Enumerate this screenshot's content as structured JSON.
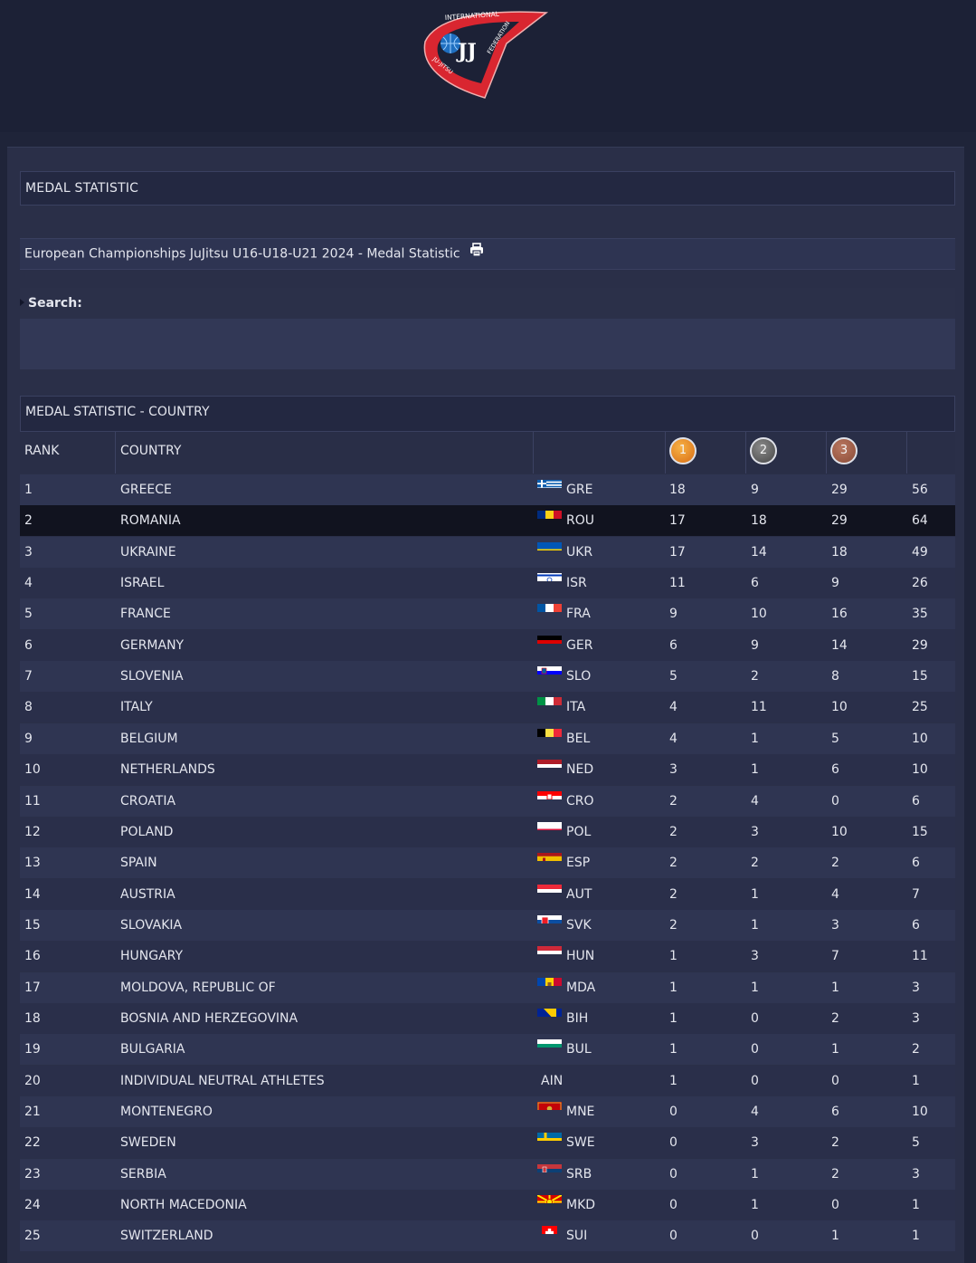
{
  "header": {
    "logo_text_top": "INTERNATIONAL",
    "logo_text_right": "FEDERATION",
    "logo_text_left": "JU-JITSU",
    "logo_mark": "JJ"
  },
  "section_title": "MEDAL STATISTIC",
  "event_title": "European Championships JuJitsu U16-U18-U21 2024 - Medal Statistic",
  "print_icon": "printer-icon",
  "search": {
    "label": "Search:"
  },
  "table": {
    "title": "MEDAL STATISTIC - COUNTRY",
    "columns": {
      "rank": "RANK",
      "country": "COUNTRY",
      "gold": "1",
      "silver": "2",
      "bronze": "3"
    },
    "medal_colors": {
      "gold": "#e8891f",
      "silver": "#5e5e5e",
      "bronze": "#a15c45"
    },
    "highlighted_rank": "2",
    "rows": [
      {
        "rank": "1",
        "country": "GREECE",
        "code": "GRE",
        "flag": "gre",
        "gold": "18",
        "silver": "9",
        "bronze": "29",
        "total": "56"
      },
      {
        "rank": "2",
        "country": "ROMANIA",
        "code": "ROU",
        "flag": "rou",
        "gold": "17",
        "silver": "18",
        "bronze": "29",
        "total": "64"
      },
      {
        "rank": "3",
        "country": "UKRAINE",
        "code": "UKR",
        "flag": "ukr",
        "gold": "17",
        "silver": "14",
        "bronze": "18",
        "total": "49"
      },
      {
        "rank": "4",
        "country": "ISRAEL",
        "code": "ISR",
        "flag": "isr",
        "gold": "11",
        "silver": "6",
        "bronze": "9",
        "total": "26"
      },
      {
        "rank": "5",
        "country": "FRANCE",
        "code": "FRA",
        "flag": "fra",
        "gold": "9",
        "silver": "10",
        "bronze": "16",
        "total": "35"
      },
      {
        "rank": "6",
        "country": "GERMANY",
        "code": "GER",
        "flag": "ger",
        "gold": "6",
        "silver": "9",
        "bronze": "14",
        "total": "29"
      },
      {
        "rank": "7",
        "country": "SLOVENIA",
        "code": "SLO",
        "flag": "slo",
        "gold": "5",
        "silver": "2",
        "bronze": "8",
        "total": "15"
      },
      {
        "rank": "8",
        "country": "ITALY",
        "code": "ITA",
        "flag": "ita",
        "gold": "4",
        "silver": "11",
        "bronze": "10",
        "total": "25"
      },
      {
        "rank": "9",
        "country": "BELGIUM",
        "code": "BEL",
        "flag": "bel",
        "gold": "4",
        "silver": "1",
        "bronze": "5",
        "total": "10"
      },
      {
        "rank": "10",
        "country": "NETHERLANDS",
        "code": "NED",
        "flag": "ned",
        "gold": "3",
        "silver": "1",
        "bronze": "6",
        "total": "10"
      },
      {
        "rank": "11",
        "country": "CROATIA",
        "code": "CRO",
        "flag": "cro",
        "gold": "2",
        "silver": "4",
        "bronze": "0",
        "total": "6"
      },
      {
        "rank": "12",
        "country": "POLAND",
        "code": "POL",
        "flag": "pol",
        "gold": "2",
        "silver": "3",
        "bronze": "10",
        "total": "15"
      },
      {
        "rank": "13",
        "country": "SPAIN",
        "code": "ESP",
        "flag": "esp",
        "gold": "2",
        "silver": "2",
        "bronze": "2",
        "total": "6"
      },
      {
        "rank": "14",
        "country": "AUSTRIA",
        "code": "AUT",
        "flag": "aut",
        "gold": "2",
        "silver": "1",
        "bronze": "4",
        "total": "7"
      },
      {
        "rank": "15",
        "country": "SLOVAKIA",
        "code": "SVK",
        "flag": "svk",
        "gold": "2",
        "silver": "1",
        "bronze": "3",
        "total": "6"
      },
      {
        "rank": "16",
        "country": "HUNGARY",
        "code": "HUN",
        "flag": "hun",
        "gold": "1",
        "silver": "3",
        "bronze": "7",
        "total": "11"
      },
      {
        "rank": "17",
        "country": "MOLDOVA, REPUBLIC OF",
        "code": "MDA",
        "flag": "mda",
        "gold": "1",
        "silver": "1",
        "bronze": "1",
        "total": "3"
      },
      {
        "rank": "18",
        "country": "BOSNIA AND HERZEGOVINA",
        "code": "BIH",
        "flag": "bih",
        "gold": "1",
        "silver": "0",
        "bronze": "2",
        "total": "3"
      },
      {
        "rank": "19",
        "country": "BULGARIA",
        "code": "BUL",
        "flag": "bul",
        "gold": "1",
        "silver": "0",
        "bronze": "1",
        "total": "2"
      },
      {
        "rank": "20",
        "country": "INDIVIDUAL NEUTRAL ATHLETES",
        "code": "AIN",
        "flag": "",
        "gold": "1",
        "silver": "0",
        "bronze": "0",
        "total": "1"
      },
      {
        "rank": "21",
        "country": "MONTENEGRO",
        "code": "MNE",
        "flag": "mne",
        "gold": "0",
        "silver": "4",
        "bronze": "6",
        "total": "10"
      },
      {
        "rank": "22",
        "country": "SWEDEN",
        "code": "SWE",
        "flag": "swe",
        "gold": "0",
        "silver": "3",
        "bronze": "2",
        "total": "5"
      },
      {
        "rank": "23",
        "country": "SERBIA",
        "code": "SRB",
        "flag": "srb",
        "gold": "0",
        "silver": "1",
        "bronze": "2",
        "total": "3"
      },
      {
        "rank": "24",
        "country": "NORTH MACEDONIA",
        "code": "MKD",
        "flag": "mkd",
        "gold": "0",
        "silver": "1",
        "bronze": "0",
        "total": "1"
      },
      {
        "rank": "25",
        "country": "SWITZERLAND",
        "code": "SUI",
        "flag": "sui",
        "gold": "0",
        "silver": "0",
        "bronze": "1",
        "total": "1"
      }
    ]
  }
}
